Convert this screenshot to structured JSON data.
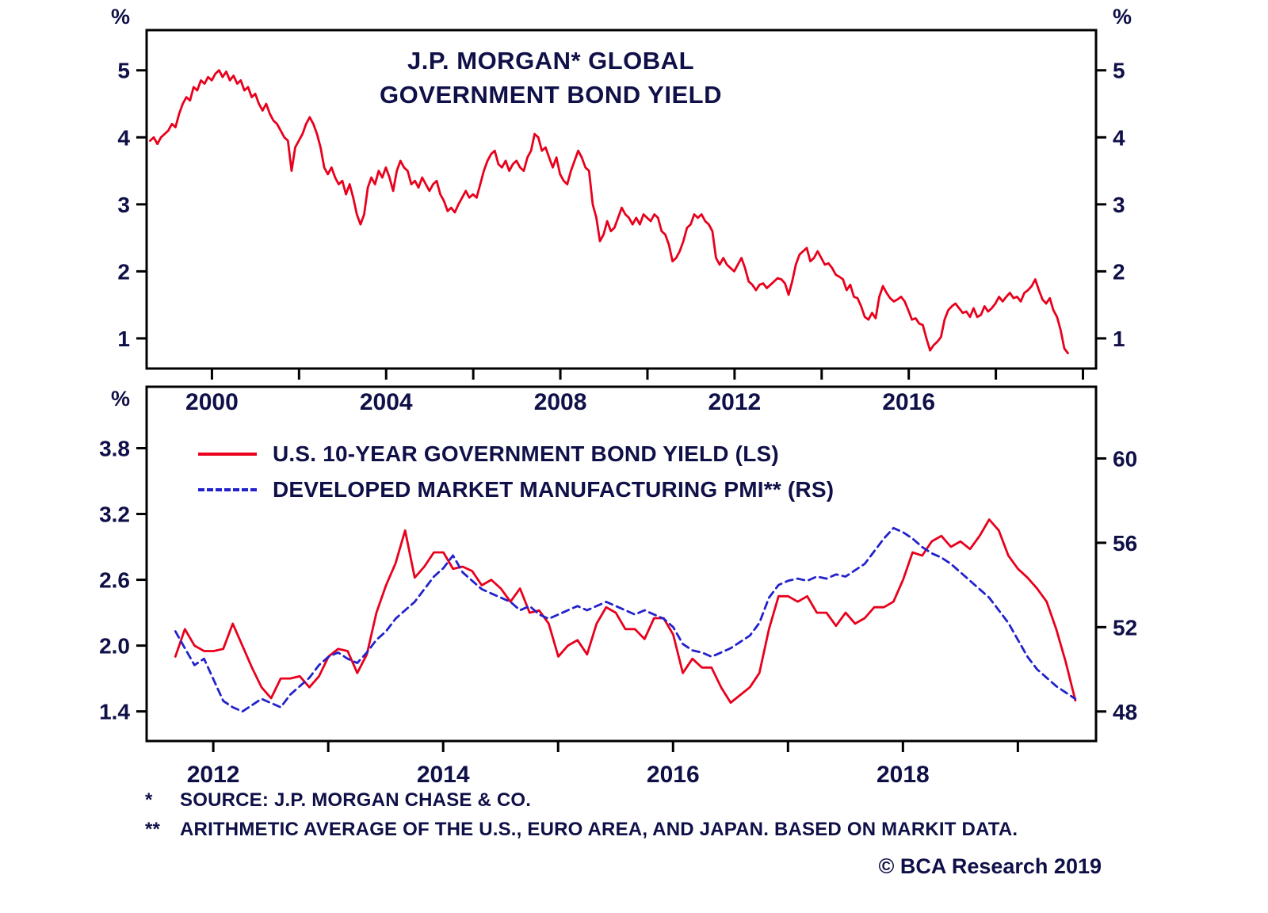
{
  "colors": {
    "red": "#e8001c",
    "blue": "#2222cc",
    "text": "#101048",
    "axis": "#000000",
    "background": "#ffffff"
  },
  "footnotes": [
    {
      "marker": "*",
      "text": "SOURCE: J.P. MORGAN CHASE & CO."
    },
    {
      "marker": "**",
      "text": "ARITHMETIC AVERAGE OF THE U.S., EURO AREA, AND JAPAN. BASED ON MARKIT DATA."
    }
  ],
  "copyright": "© BCA Research 2019",
  "chart_data": [
    {
      "type": "line",
      "title": "J.P. MORGAN* GLOBAL GOVERNMENT BOND YIELD",
      "title_lines": [
        "J.P. MORGAN* GLOBAL",
        "GOVERNMENT BOND YIELD"
      ],
      "unit_left": "%",
      "unit_right": "%",
      "x_range": [
        1998.5,
        2020.3
      ],
      "y_left_range": [
        0.55,
        5.6
      ],
      "y_left_tick_values": [
        1,
        2,
        3,
        4,
        5
      ],
      "y_left_tick_labels": [
        "1",
        "2",
        "3",
        "4",
        "5"
      ],
      "y_right_range": [
        0.55,
        5.6
      ],
      "y_right_tick_values": [
        1,
        2,
        3,
        4,
        5
      ],
      "y_right_tick_labels": [
        "1",
        "2",
        "3",
        "4",
        "5"
      ],
      "x_tick_label_values": [
        2000,
        2004,
        2008,
        2012,
        2016
      ],
      "x_tick_label_texts": [
        "2000",
        "2004",
        "2008",
        "2012",
        "2016"
      ],
      "x_tick_minor_values": [
        2000,
        2002,
        2004,
        2006,
        2008,
        2010,
        2012,
        2014,
        2016,
        2018,
        2020
      ],
      "series": [
        {
          "name": "J.P. Morgan Global Government Bond Yield (%)",
          "axis": "left",
          "color": "#e8001c",
          "style": "solid",
          "x_start": 1998.58,
          "x_step": 0.0833,
          "values": [
            3.95,
            4.0,
            3.9,
            4.0,
            4.05,
            4.1,
            4.2,
            4.15,
            4.35,
            4.5,
            4.6,
            4.55,
            4.75,
            4.7,
            4.85,
            4.8,
            4.9,
            4.85,
            4.95,
            5.0,
            4.9,
            4.98,
            4.85,
            4.92,
            4.8,
            4.85,
            4.7,
            4.75,
            4.6,
            4.65,
            4.5,
            4.4,
            4.5,
            4.35,
            4.25,
            4.2,
            4.1,
            4.0,
            3.95,
            3.5,
            3.85,
            3.95,
            4.05,
            4.2,
            4.3,
            4.2,
            4.05,
            3.85,
            3.55,
            3.45,
            3.55,
            3.4,
            3.3,
            3.35,
            3.15,
            3.3,
            3.1,
            2.85,
            2.7,
            2.85,
            3.25,
            3.4,
            3.3,
            3.5,
            3.4,
            3.55,
            3.4,
            3.2,
            3.5,
            3.65,
            3.55,
            3.5,
            3.3,
            3.35,
            3.25,
            3.4,
            3.3,
            3.2,
            3.3,
            3.35,
            3.15,
            3.05,
            2.9,
            2.95,
            2.88,
            3.0,
            3.1,
            3.2,
            3.1,
            3.15,
            3.1,
            3.3,
            3.5,
            3.65,
            3.75,
            3.8,
            3.6,
            3.55,
            3.65,
            3.5,
            3.6,
            3.65,
            3.55,
            3.5,
            3.7,
            3.8,
            4.05,
            4.0,
            3.8,
            3.85,
            3.7,
            3.55,
            3.7,
            3.45,
            3.35,
            3.3,
            3.5,
            3.65,
            3.8,
            3.7,
            3.55,
            3.5,
            3.0,
            2.8,
            2.45,
            2.55,
            2.75,
            2.6,
            2.65,
            2.8,
            2.95,
            2.85,
            2.8,
            2.7,
            2.8,
            2.7,
            2.85,
            2.8,
            2.75,
            2.85,
            2.8,
            2.6,
            2.55,
            2.4,
            2.15,
            2.2,
            2.3,
            2.45,
            2.65,
            2.7,
            2.85,
            2.8,
            2.85,
            2.75,
            2.7,
            2.6,
            2.2,
            2.1,
            2.2,
            2.1,
            2.05,
            2.0,
            2.1,
            2.2,
            2.05,
            1.85,
            1.8,
            1.72,
            1.8,
            1.82,
            1.75,
            1.8,
            1.85,
            1.9,
            1.88,
            1.82,
            1.65,
            1.85,
            2.1,
            2.25,
            2.3,
            2.35,
            2.15,
            2.2,
            2.3,
            2.2,
            2.1,
            2.12,
            2.05,
            1.95,
            1.92,
            1.88,
            1.72,
            1.8,
            1.62,
            1.6,
            1.48,
            1.32,
            1.28,
            1.38,
            1.3,
            1.62,
            1.78,
            1.68,
            1.6,
            1.55,
            1.58,
            1.62,
            1.55,
            1.42,
            1.28,
            1.3,
            1.22,
            1.2,
            1.0,
            0.82,
            0.9,
            0.95,
            1.02,
            1.28,
            1.42,
            1.48,
            1.52,
            1.45,
            1.38,
            1.4,
            1.32,
            1.45,
            1.32,
            1.35,
            1.48,
            1.4,
            1.45,
            1.52,
            1.62,
            1.55,
            1.62,
            1.68,
            1.6,
            1.62,
            1.55,
            1.68,
            1.72,
            1.78,
            1.88,
            1.72,
            1.58,
            1.52,
            1.6,
            1.42,
            1.32,
            1.12,
            0.85,
            0.78
          ]
        }
      ]
    },
    {
      "type": "line",
      "unit_left": "%",
      "x_range": [
        2011.42,
        2019.68
      ],
      "y_left_range": [
        1.13,
        4.36
      ],
      "y_left_tick_values": [
        1.4,
        2.0,
        2.6,
        3.2,
        3.8
      ],
      "y_left_tick_labels": [
        "1.4",
        "2.0",
        "2.6",
        "3.2",
        "3.8"
      ],
      "y_right_range": [
        46.6,
        63.4
      ],
      "y_right_tick_values": [
        48,
        52,
        56,
        60
      ],
      "y_right_tick_labels": [
        "48",
        "52",
        "56",
        "60"
      ],
      "x_tick_label_values": [
        2012,
        2014,
        2016,
        2018
      ],
      "x_tick_label_texts": [
        "2012",
        "2014",
        "2016",
        "2018"
      ],
      "x_tick_minor_values": [
        2012,
        2013,
        2014,
        2015,
        2016,
        2017,
        2018,
        2019
      ],
      "legend": [
        {
          "label": "U.S. 10-YEAR GOVERNMENT BOND YIELD (LS)",
          "color": "#e8001c",
          "style": "solid"
        },
        {
          "label": "DEVELOPED MARKET MANUFACTURING PMI** (RS)",
          "color": "#2222cc",
          "style": "dashed"
        }
      ],
      "series": [
        {
          "name": "U.S. 10-Year Government Bond Yield (LS, %)",
          "axis": "left",
          "color": "#e8001c",
          "style": "solid",
          "x_start": 2011.67,
          "x_step": 0.0833,
          "values": [
            1.9,
            2.15,
            2.0,
            1.95,
            1.95,
            1.97,
            2.2,
            2.0,
            1.8,
            1.62,
            1.52,
            1.7,
            1.7,
            1.72,
            1.62,
            1.72,
            1.9,
            1.97,
            1.95,
            1.75,
            1.92,
            2.3,
            2.55,
            2.75,
            3.05,
            2.62,
            2.72,
            2.85,
            2.85,
            2.7,
            2.72,
            2.68,
            2.55,
            2.6,
            2.52,
            2.4,
            2.52,
            2.3,
            2.32,
            2.2,
            1.9,
            2.0,
            2.05,
            1.92,
            2.2,
            2.35,
            2.3,
            2.15,
            2.15,
            2.06,
            2.25,
            2.25,
            2.1,
            1.75,
            1.88,
            1.8,
            1.8,
            1.62,
            1.48,
            1.55,
            1.62,
            1.75,
            2.15,
            2.45,
            2.45,
            2.4,
            2.45,
            2.3,
            2.3,
            2.18,
            2.3,
            2.2,
            2.25,
            2.35,
            2.35,
            2.4,
            2.6,
            2.85,
            2.82,
            2.95,
            3.0,
            2.9,
            2.95,
            2.88,
            3.0,
            3.15,
            3.05,
            2.82,
            2.7,
            2.62,
            2.52,
            2.4,
            2.15,
            1.85,
            1.5
          ]
        },
        {
          "name": "Developed Market Manufacturing PMI (RS)",
          "axis": "right",
          "color": "#2222cc",
          "style": "dashed",
          "x_start": 2011.67,
          "x_step": 0.0833,
          "values": [
            51.8,
            51.0,
            50.2,
            50.5,
            49.5,
            48.5,
            48.2,
            48.0,
            48.3,
            48.6,
            48.4,
            48.2,
            48.8,
            49.2,
            49.6,
            50.2,
            50.6,
            50.8,
            50.5,
            50.3,
            50.8,
            51.4,
            51.8,
            52.4,
            52.8,
            53.2,
            53.8,
            54.4,
            54.8,
            55.4,
            54.6,
            54.2,
            53.8,
            53.6,
            53.4,
            53.2,
            52.8,
            53.0,
            52.6,
            52.4,
            52.6,
            52.8,
            53.0,
            52.8,
            53.0,
            53.2,
            53.0,
            52.8,
            52.6,
            52.8,
            52.6,
            52.4,
            52.0,
            51.2,
            50.9,
            50.8,
            50.6,
            50.8,
            51.0,
            51.3,
            51.6,
            52.2,
            53.4,
            54.0,
            54.2,
            54.3,
            54.2,
            54.4,
            54.3,
            54.5,
            54.4,
            54.7,
            55.0,
            55.6,
            56.2,
            56.7,
            56.5,
            56.2,
            55.8,
            55.5,
            55.3,
            55.0,
            54.6,
            54.2,
            53.8,
            53.4,
            52.8,
            52.2,
            51.4,
            50.6,
            50.0,
            49.6,
            49.2,
            48.9,
            48.6
          ]
        }
      ]
    }
  ]
}
